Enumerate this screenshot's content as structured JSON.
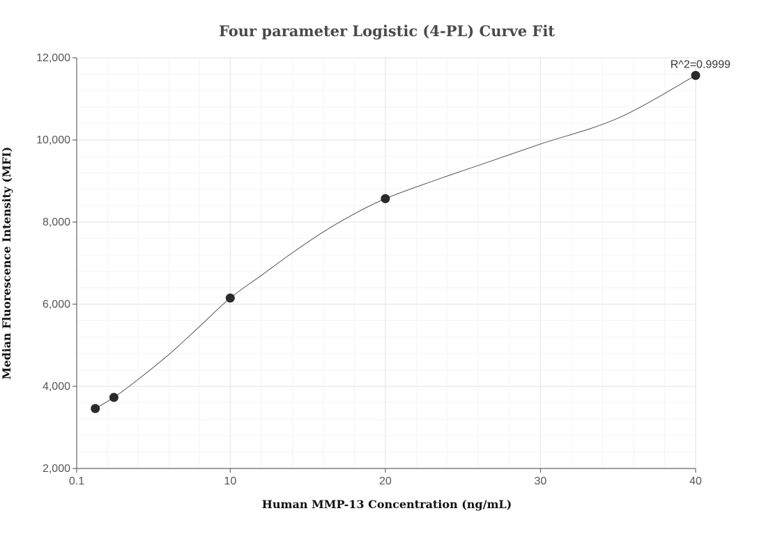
{
  "chart_data": {
    "type": "scatter",
    "title": "Four parameter Logistic (4-PL) Curve Fit",
    "xlabel": "Human MMP-13 Concentration (ng/mL)",
    "ylabel": "Median Fluorescence Intensity (MFI)",
    "xlim": [
      0.1,
      40
    ],
    "ylim": [
      2000,
      12000
    ],
    "x_ticks": [
      {
        "value": 0.1,
        "label": "0.1"
      },
      {
        "value": 10,
        "label": "10"
      },
      {
        "value": 20,
        "label": "20"
      },
      {
        "value": 30,
        "label": "30"
      },
      {
        "value": 40,
        "label": "40"
      }
    ],
    "y_ticks": [
      {
        "value": 2000,
        "label": "2,000"
      },
      {
        "value": 4000,
        "label": "4,000"
      },
      {
        "value": 6000,
        "label": "6,000"
      },
      {
        "value": 8000,
        "label": "8,000"
      },
      {
        "value": 10000,
        "label": "10,000"
      },
      {
        "value": 12000,
        "label": "12,000"
      }
    ],
    "grid": true,
    "series": [
      {
        "points": [
          {
            "x": 1.3,
            "y": 3460
          },
          {
            "x": 2.5,
            "y": 3730
          },
          {
            "x": 10,
            "y": 6150
          },
          {
            "x": 20,
            "y": 8570
          },
          {
            "x": 40,
            "y": 11570
          }
        ]
      }
    ],
    "fit_curve": [
      {
        "x": 1.3,
        "y": 3460
      },
      {
        "x": 2.5,
        "y": 3730
      },
      {
        "x": 4,
        "y": 4150
      },
      {
        "x": 6,
        "y": 4760
      },
      {
        "x": 8,
        "y": 5450
      },
      {
        "x": 10,
        "y": 6150
      },
      {
        "x": 12,
        "y": 6700
      },
      {
        "x": 14,
        "y": 7250
      },
      {
        "x": 16,
        "y": 7760
      },
      {
        "x": 18,
        "y": 8200
      },
      {
        "x": 20,
        "y": 8570
      },
      {
        "x": 23,
        "y": 8990
      },
      {
        "x": 26,
        "y": 9380
      },
      {
        "x": 30,
        "y": 9900
      },
      {
        "x": 35,
        "y": 10530
      },
      {
        "x": 40,
        "y": 11570
      }
    ],
    "annotation": "R^2=0.9999",
    "colors": {
      "point": "#2a2a2a",
      "curve": "#555555",
      "grid": "#e4e8ee"
    }
  }
}
